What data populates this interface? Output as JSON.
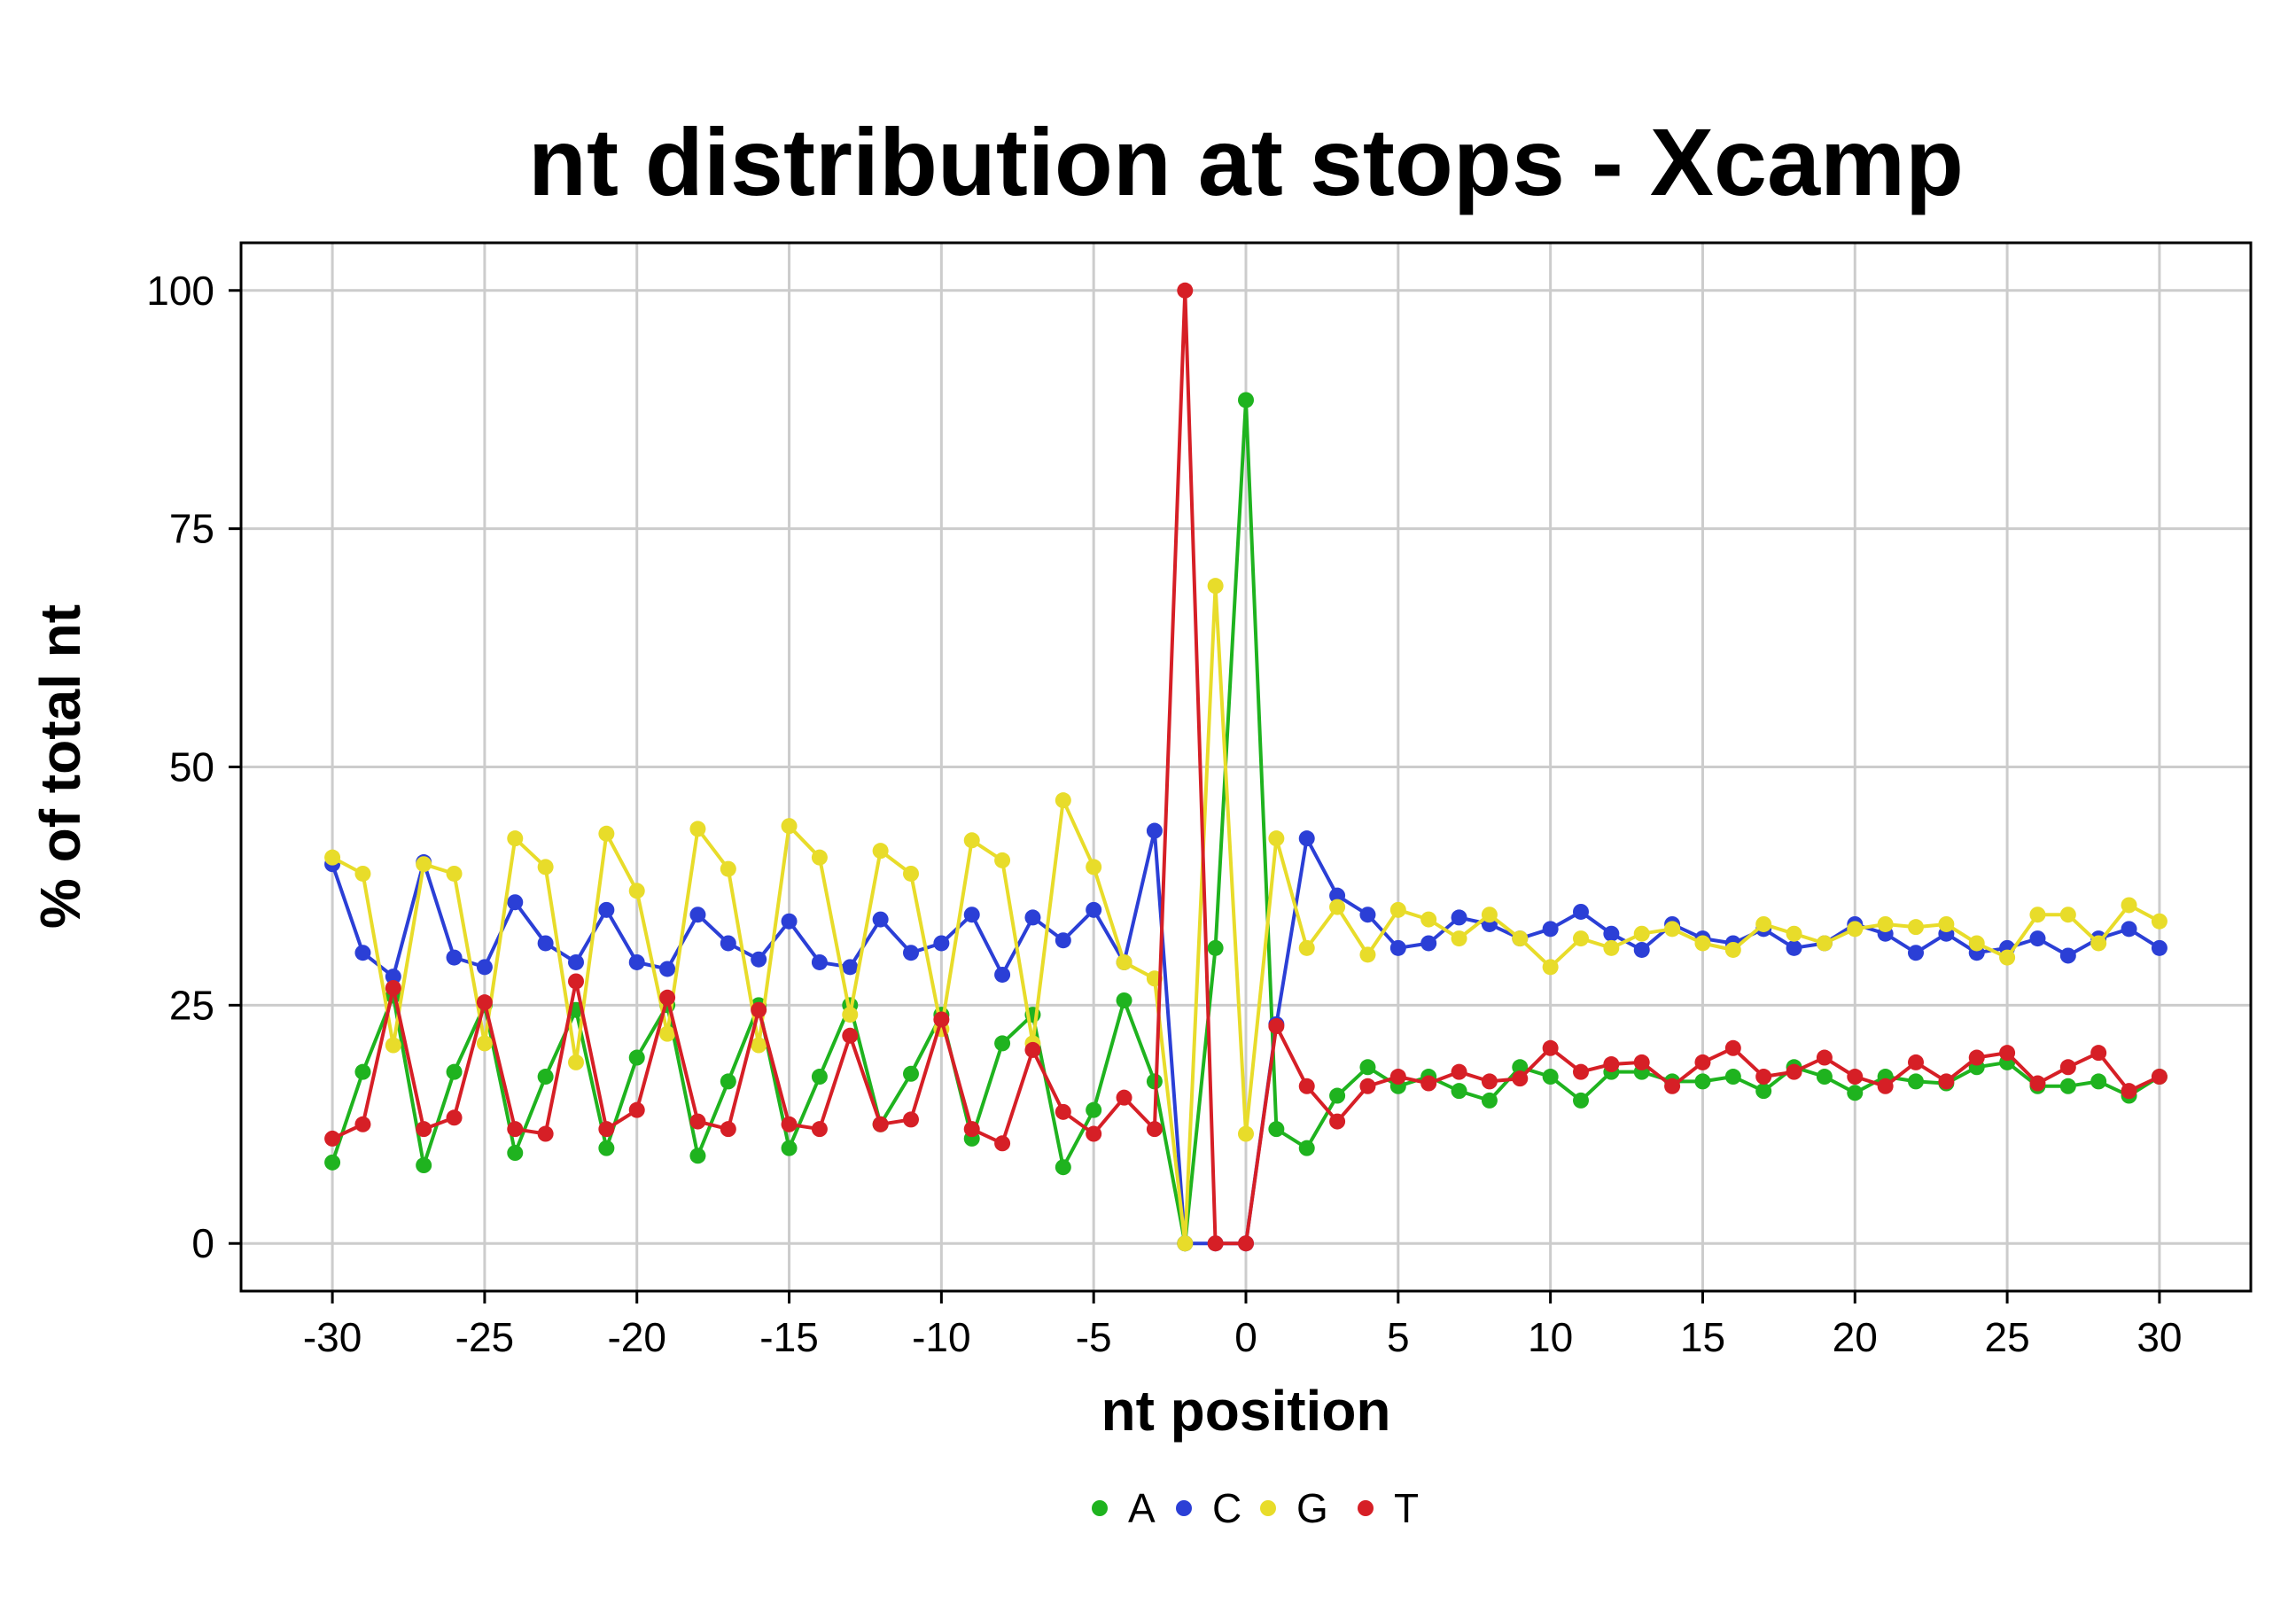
{
  "chart_data": {
    "type": "line",
    "title": "nt distribution at stops - Xcamp",
    "xlabel": "nt position",
    "ylabel": "% of total nt",
    "xlim": [
      -33,
      33
    ],
    "ylim": [
      -5,
      105
    ],
    "xticks": [
      -30,
      -25,
      -20,
      -15,
      -10,
      -5,
      0,
      5,
      10,
      15,
      20,
      25,
      30
    ],
    "xtick_labels": [
      "-30",
      "-25",
      "-20",
      "-15",
      "-10",
      "-5",
      "0",
      "5",
      "10",
      "15",
      "20",
      "25",
      "30"
    ],
    "yticks": [
      0,
      25,
      50,
      75,
      100
    ],
    "ytick_labels": [
      "0",
      "25",
      "50",
      "75",
      "100"
    ],
    "grid": true,
    "legend_position": "bottom",
    "x": [
      -30,
      -29,
      -28,
      -27,
      -26,
      -25,
      -24,
      -23,
      -22,
      -21,
      -20,
      -19,
      -18,
      -17,
      -16,
      -15,
      -14,
      -13,
      -12,
      -11,
      -10,
      -9,
      -8,
      -7,
      -6,
      -5,
      -4,
      -3,
      -2,
      -1,
      0,
      1,
      2,
      3,
      4,
      5,
      6,
      7,
      8,
      9,
      10,
      11,
      12,
      13,
      14,
      15,
      16,
      17,
      18,
      19,
      20,
      21,
      22,
      23,
      24,
      25,
      26,
      27,
      28,
      29,
      30
    ],
    "series": [
      {
        "name": "A",
        "color": "#1fb31f",
        "values": [
          8.5,
          18.0,
          26.0,
          8.2,
          18.0,
          25.0,
          9.5,
          17.5,
          24.5,
          10.0,
          19.5,
          25.0,
          9.2,
          17.0,
          25.0,
          10.0,
          17.5,
          25.0,
          12.5,
          17.8,
          24.0,
          11.0,
          21.0,
          24.0,
          8.0,
          14.0,
          25.5,
          17.0,
          0.0,
          31.0,
          88.5,
          12.0,
          10.0,
          15.5,
          18.5,
          16.5,
          17.5,
          16.0,
          15.0,
          18.5,
          17.5,
          15.0,
          18.0,
          18.0,
          17.0,
          17.0,
          17.5,
          16.0,
          18.5,
          17.5,
          15.8,
          17.5,
          17.0,
          16.8,
          18.5,
          19.0,
          16.5,
          16.5,
          17.0,
          15.5,
          17.5
        ]
      },
      {
        "name": "C",
        "color": "#2b3fd6",
        "values": [
          39.8,
          30.5,
          28.0,
          40.0,
          30.0,
          29.0,
          35.8,
          31.5,
          29.5,
          35.0,
          29.5,
          28.8,
          34.5,
          31.5,
          29.8,
          33.8,
          29.5,
          29.0,
          34.0,
          30.5,
          31.5,
          34.5,
          28.2,
          34.2,
          31.8,
          35.0,
          29.5,
          43.3,
          0.0,
          0.0,
          0.0,
          23.0,
          42.5,
          36.5,
          34.5,
          31.0,
          31.5,
          34.2,
          33.5,
          32.0,
          33.0,
          34.8,
          32.5,
          30.8,
          33.5,
          32.0,
          31.5,
          33.0,
          31.0,
          31.5,
          33.5,
          32.5,
          30.5,
          32.5,
          30.5,
          31.0,
          32.0,
          30.2,
          32.0,
          33.0,
          31.0
        ]
      },
      {
        "name": "G",
        "color": "#e8dc2a",
        "values": [
          40.5,
          38.8,
          20.8,
          39.8,
          38.8,
          21.0,
          42.5,
          39.5,
          19.0,
          43.0,
          37.0,
          22.0,
          43.5,
          39.3,
          20.8,
          43.8,
          40.5,
          24.0,
          41.2,
          38.8,
          22.5,
          42.3,
          40.2,
          21.0,
          46.5,
          39.5,
          29.5,
          27.8,
          0.0,
          69.0,
          11.5,
          42.5,
          31.0,
          35.3,
          30.3,
          35.0,
          34.0,
          32.0,
          34.5,
          32.0,
          29.0,
          32.0,
          31.0,
          32.5,
          33.0,
          31.5,
          30.8,
          33.5,
          32.5,
          31.5,
          33.0,
          33.5,
          33.2,
          33.5,
          31.5,
          30.0,
          34.5,
          34.5,
          31.5,
          35.5,
          33.8
        ]
      },
      {
        "name": "T",
        "color": "#d61f26",
        "values": [
          11.0,
          12.5,
          26.8,
          12.0,
          13.2,
          25.3,
          12.0,
          11.5,
          27.5,
          12.0,
          14.0,
          25.8,
          12.8,
          12.0,
          24.5,
          12.5,
          12.0,
          21.8,
          12.5,
          13.0,
          23.5,
          12.0,
          10.5,
          20.3,
          13.8,
          11.5,
          15.3,
          12.0,
          100.0,
          0.0,
          0.0,
          22.8,
          16.5,
          12.8,
          16.5,
          17.5,
          16.8,
          18.0,
          17.0,
          17.3,
          20.5,
          18.0,
          18.8,
          19.0,
          16.5,
          19.0,
          20.5,
          17.5,
          18.0,
          19.5,
          17.5,
          16.5,
          19.0,
          17.0,
          19.5,
          20.0,
          16.8,
          18.5,
          20.0,
          16.0,
          17.5
        ]
      }
    ]
  }
}
